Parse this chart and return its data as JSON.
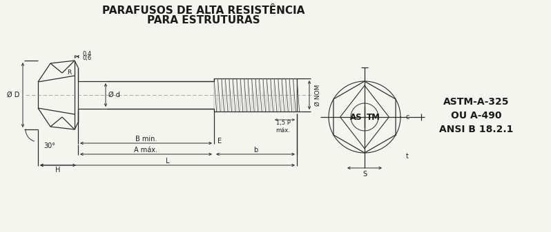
{
  "title_line1": "PARAFUSOS DE ALTA RESISTÊNCIA",
  "title_line2": "PARA ESTRUTURAS",
  "bg_color": "#f5f5f0",
  "line_color": "#2a2a2a",
  "text_color": "#1a1a1a",
  "label_04": "0,4",
  "label_06": "0,6",
  "label_R": "R",
  "label_D": "Ø D",
  "label_d": "Ø d",
  "label_NOM": "Ø NOM",
  "label_30": "30°",
  "label_H": "H",
  "label_Bmin": "B min.",
  "label_E": "E",
  "label_Amax": "A máx.",
  "label_b": "b",
  "label_L": "L",
  "label_15P": "1,5 P\nmáx.",
  "label_ASTM1": "ASTM-A-325",
  "label_ASTM2": "OU A-490",
  "label_ASTM3": "ANSI B 18.2.1",
  "label_c": "c",
  "label_t": "t",
  "label_s": "S",
  "label_AS": "AS",
  "label_TM": "TM"
}
